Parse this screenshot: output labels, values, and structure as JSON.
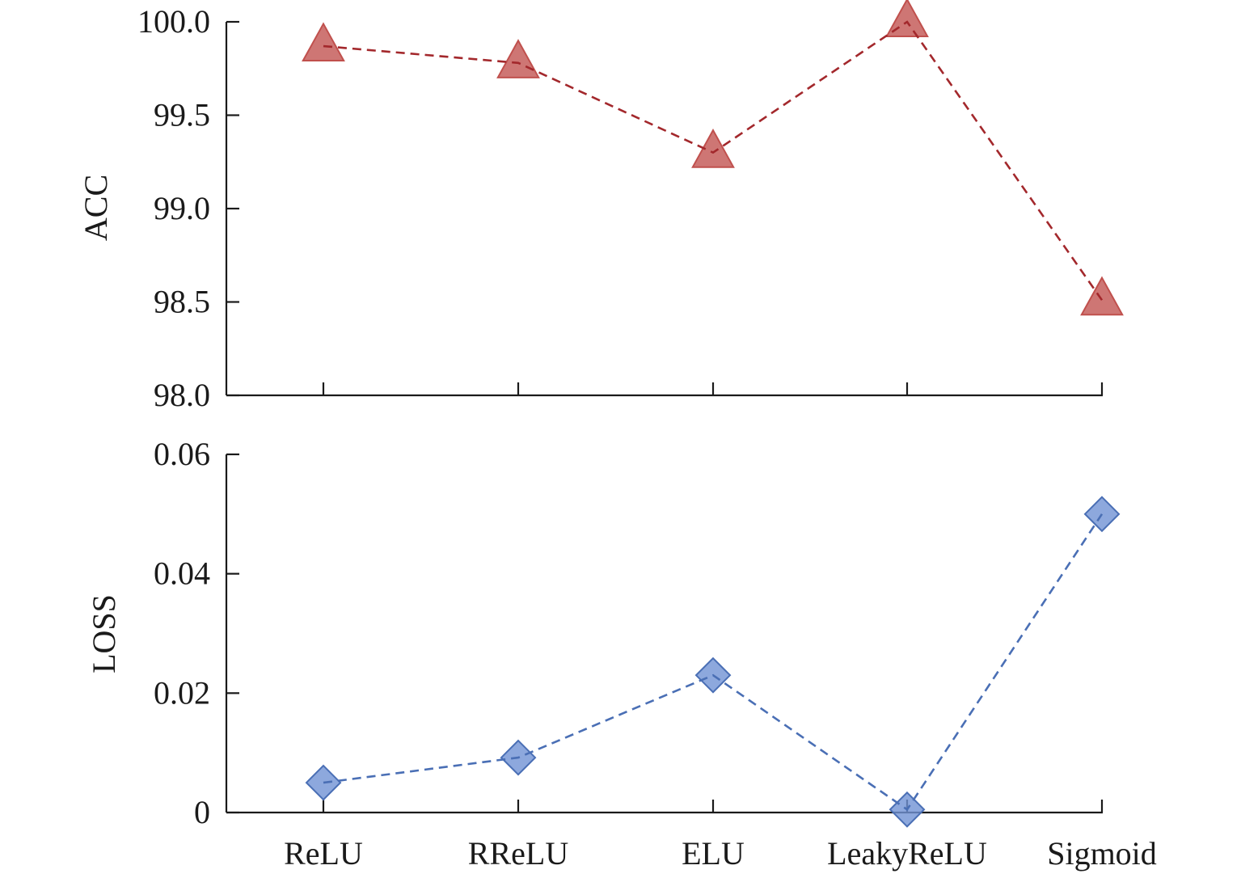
{
  "chart_data": [
    {
      "type": "line",
      "categories": [
        "ReLU",
        "RReLU",
        "ELU",
        "LeakyReLU",
        "Sigmoid"
      ],
      "series": [
        {
          "values": [
            99.87,
            99.78,
            99.3,
            100.0,
            98.51
          ]
        }
      ],
      "ylabel": "ACC",
      "ylim": [
        98.0,
        100.0
      ],
      "yticks": [
        "98.0",
        "98.5",
        "99.0",
        "99.5",
        "100.0"
      ],
      "marker": "triangle",
      "color": "#c0504d",
      "line_color": "#a3282c",
      "x_tick_labels_shown": false,
      "grid": false
    },
    {
      "type": "line",
      "categories": [
        "ReLU",
        "RReLU",
        "ELU",
        "LeakyReLU",
        "Sigmoid"
      ],
      "series": [
        {
          "values": [
            0.005,
            0.0092,
            0.023,
            0.0005,
            0.05
          ]
        }
      ],
      "ylabel": "LOSS",
      "ylim": [
        0,
        0.06
      ],
      "yticks": [
        "0",
        "0.02",
        "0.04",
        "0.06"
      ],
      "marker": "diamond",
      "color": "#7092d4",
      "line_color": "#4a6fb5",
      "x_tick_labels_shown": true,
      "grid": false
    }
  ]
}
